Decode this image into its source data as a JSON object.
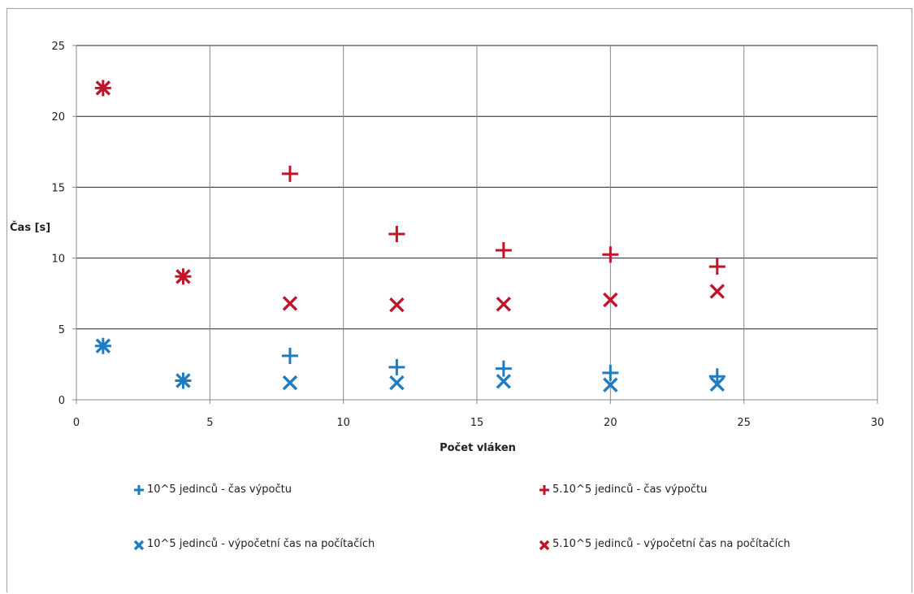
{
  "chart_data": {
    "type": "scatter",
    "xlabel": "Počet vláken",
    "ylabel": "Čas [s]",
    "xlim": [
      0,
      30
    ],
    "ylim": [
      0,
      25
    ],
    "xticks": [
      0,
      5,
      10,
      15,
      20,
      25,
      30
    ],
    "yticks": [
      0,
      5,
      10,
      15,
      20,
      25
    ],
    "grid": "on",
    "legend": "bottom",
    "series": [
      {
        "name": "10^5 jedinců - čas výpočtu",
        "marker": "plus",
        "color": "#1f7bc2",
        "points": [
          [
            1,
            3.8
          ],
          [
            4,
            1.35
          ],
          [
            8,
            3.1
          ],
          [
            12,
            2.3
          ],
          [
            16,
            2.2
          ],
          [
            20,
            1.9
          ],
          [
            24,
            1.65
          ]
        ]
      },
      {
        "name": "5.10^5 jedinců - čas výpočtu",
        "marker": "plus",
        "color": "#c0142a",
        "points": [
          [
            1,
            22.0
          ],
          [
            4,
            8.7
          ],
          [
            8,
            15.95
          ],
          [
            12,
            11.7
          ],
          [
            16,
            10.55
          ],
          [
            20,
            10.25
          ],
          [
            24,
            9.4
          ]
        ]
      },
      {
        "name": "10^5 jedinců - výpočetní čas na počítačích",
        "marker": "cross",
        "color": "#1f7bc2",
        "points": [
          [
            1,
            3.8
          ],
          [
            4,
            1.35
          ],
          [
            8,
            1.2
          ],
          [
            12,
            1.2
          ],
          [
            16,
            1.3
          ],
          [
            20,
            1.05
          ],
          [
            24,
            1.1
          ]
        ]
      },
      {
        "name": "5.10^5 jedinců - výpočetní čas na počítačích",
        "marker": "cross",
        "color": "#c0142a",
        "points": [
          [
            1,
            22.0
          ],
          [
            4,
            8.7
          ],
          [
            8,
            6.8
          ],
          [
            12,
            6.7
          ],
          [
            16,
            6.75
          ],
          [
            20,
            7.05
          ],
          [
            24,
            7.65
          ]
        ]
      }
    ]
  }
}
